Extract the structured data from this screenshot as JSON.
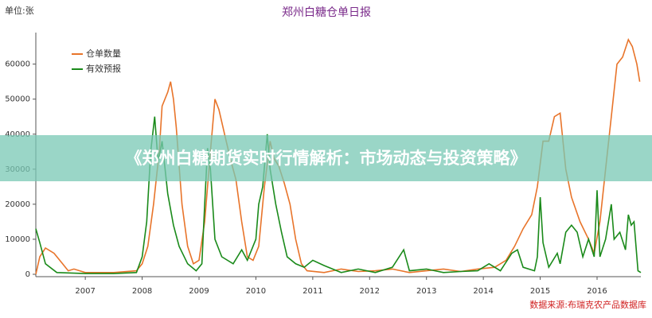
{
  "chart_data": {
    "type": "line",
    "title": "郑州白糖仓单日报",
    "unit_label": "单位:张",
    "source": "数据来源:布瑞克农产品数据库",
    "xlim": [
      2006.13,
      2016.77
    ],
    "xticks": [
      2007,
      2008,
      2009,
      2010,
      2011,
      2012,
      2013,
      2014,
      2015,
      2016
    ],
    "ylim": [
      0,
      69000
    ],
    "yticks": [
      0,
      10000,
      20000,
      30000,
      40000,
      50000,
      60000
    ],
    "series": [
      {
        "name": "仓单数量",
        "color": "#e8742a",
        "x": [
          2006.13,
          2006.2,
          2006.3,
          2006.45,
          2006.6,
          2006.7,
          2006.8,
          2007.0,
          2007.5,
          2007.9,
          2008.0,
          2008.1,
          2008.2,
          2008.3,
          2008.35,
          2008.45,
          2008.5,
          2008.55,
          2008.6,
          2008.7,
          2008.8,
          2008.9,
          2009.0,
          2009.1,
          2009.2,
          2009.28,
          2009.35,
          2009.45,
          2009.55,
          2009.65,
          2009.75,
          2009.85,
          2009.95,
          2010.05,
          2010.15,
          2010.25,
          2010.32,
          2010.4,
          2010.5,
          2010.6,
          2010.7,
          2010.8,
          2010.9,
          2011.2,
          2011.5,
          2011.8,
          2012.1,
          2012.4,
          2012.7,
          2013.0,
          2013.3,
          2013.6,
          2013.9,
          2014.2,
          2014.4,
          2014.55,
          2014.7,
          2014.85,
          2014.95,
          2015.05,
          2015.15,
          2015.25,
          2015.35,
          2015.45,
          2015.55,
          2015.7,
          2015.85,
          2015.95,
          2016.05,
          2016.15,
          2016.25,
          2016.35,
          2016.45,
          2016.55,
          2016.62,
          2016.7,
          2016.75
        ],
        "values": [
          0,
          5000,
          7500,
          6000,
          3000,
          1000,
          1500,
          500,
          500,
          1000,
          3000,
          8000,
          20000,
          35000,
          48000,
          52000,
          55000,
          50000,
          42000,
          20000,
          8000,
          3000,
          4000,
          15000,
          35000,
          50000,
          47000,
          40000,
          33000,
          27000,
          15000,
          5000,
          4000,
          8000,
          25000,
          38000,
          33000,
          31000,
          26000,
          20000,
          10000,
          3000,
          1000,
          500,
          1500,
          800,
          1000,
          1500,
          500,
          1000,
          1500,
          800,
          1500,
          2000,
          4000,
          8000,
          13000,
          17000,
          25000,
          38000,
          38000,
          45000,
          46000,
          30000,
          22000,
          15000,
          10000,
          6000,
          15000,
          30000,
          45000,
          60000,
          62000,
          67000,
          65000,
          60000,
          55000
        ]
      },
      {
        "name": "有效预报",
        "color": "#1a8a1a",
        "x": [
          2006.13,
          2006.2,
          2006.3,
          2006.5,
          2007.0,
          2007.5,
          2007.9,
          2008.0,
          2008.08,
          2008.15,
          2008.22,
          2008.28,
          2008.35,
          2008.45,
          2008.55,
          2008.65,
          2008.8,
          2008.95,
          2009.05,
          2009.1,
          2009.15,
          2009.2,
          2009.28,
          2009.4,
          2009.6,
          2009.75,
          2009.85,
          2010.0,
          2010.05,
          2010.12,
          2010.2,
          2010.25,
          2010.35,
          2010.45,
          2010.55,
          2010.7,
          2010.85,
          2011.0,
          2011.2,
          2011.5,
          2011.8,
          2012.1,
          2012.4,
          2012.6,
          2012.7,
          2013.0,
          2013.3,
          2013.6,
          2013.9,
          2014.1,
          2014.3,
          2014.5,
          2014.6,
          2014.7,
          2014.9,
          2014.95,
          2015.0,
          2015.05,
          2015.15,
          2015.3,
          2015.35,
          2015.45,
          2015.55,
          2015.65,
          2015.75,
          2015.85,
          2015.95,
          2016.0,
          2016.05,
          2016.15,
          2016.25,
          2016.3,
          2016.4,
          2016.5,
          2016.55,
          2016.6,
          2016.65,
          2016.72,
          2016.77
        ],
        "values": [
          13000,
          9000,
          3000,
          500,
          200,
          200,
          500,
          5000,
          15000,
          35000,
          45000,
          32000,
          38000,
          23000,
          14000,
          8000,
          3000,
          1000,
          3000,
          20000,
          36000,
          30000,
          10000,
          5000,
          3000,
          7000,
          4000,
          10000,
          20000,
          25000,
          40000,
          30000,
          20000,
          12000,
          5000,
          3000,
          2000,
          4000,
          2500,
          500,
          1500,
          500,
          2000,
          7000,
          1000,
          1500,
          500,
          800,
          1000,
          3000,
          1000,
          6000,
          7000,
          2000,
          1000,
          5000,
          22000,
          9000,
          2000,
          6000,
          3000,
          12000,
          14000,
          12000,
          5000,
          10000,
          5000,
          24000,
          5000,
          10000,
          20000,
          10000,
          12000,
          7000,
          17000,
          14000,
          15000,
          1000,
          500
        ]
      }
    ]
  },
  "banner": "《郑州白糖期货实时行情解析：市场动态与投资策略》"
}
